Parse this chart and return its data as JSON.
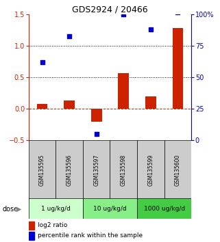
{
  "title": "GDS2924 / 20466",
  "categories": [
    "GSM135595",
    "GSM135596",
    "GSM135597",
    "GSM135598",
    "GSM135599",
    "GSM135600"
  ],
  "log2_ratio": [
    0.08,
    0.13,
    -0.2,
    0.57,
    0.2,
    1.28
  ],
  "percentile_rank_pct": [
    62,
    83,
    5,
    100,
    88,
    102
  ],
  "bar_color": "#cc2200",
  "dot_color": "#0000cc",
  "ylim_left": [
    -0.5,
    1.5
  ],
  "ylim_right": [
    0,
    100
  ],
  "yticks_left": [
    -0.5,
    0.0,
    0.5,
    1.0,
    1.5
  ],
  "yticks_right": [
    0,
    25,
    50,
    75,
    100
  ],
  "dose_groups": [
    {
      "label": "1 ug/kg/d",
      "indices": [
        0,
        1
      ],
      "color": "#ccffcc"
    },
    {
      "label": "10 ug/kg/d",
      "indices": [
        2,
        3
      ],
      "color": "#88ee88"
    },
    {
      "label": "1000 ug/kg/d",
      "indices": [
        4,
        5
      ],
      "color": "#44cc44"
    }
  ],
  "dose_label": "dose",
  "legend_bar_label": "log2 ratio",
  "legend_dot_label": "percentile rank within the sample",
  "bg_sample_color": "#cccccc",
  "right_axis_color": "#0000cc",
  "left_axis_color": "#cc2200",
  "title_fontsize": 9,
  "figsize": [
    3.21,
    3.54
  ],
  "dpi": 100
}
